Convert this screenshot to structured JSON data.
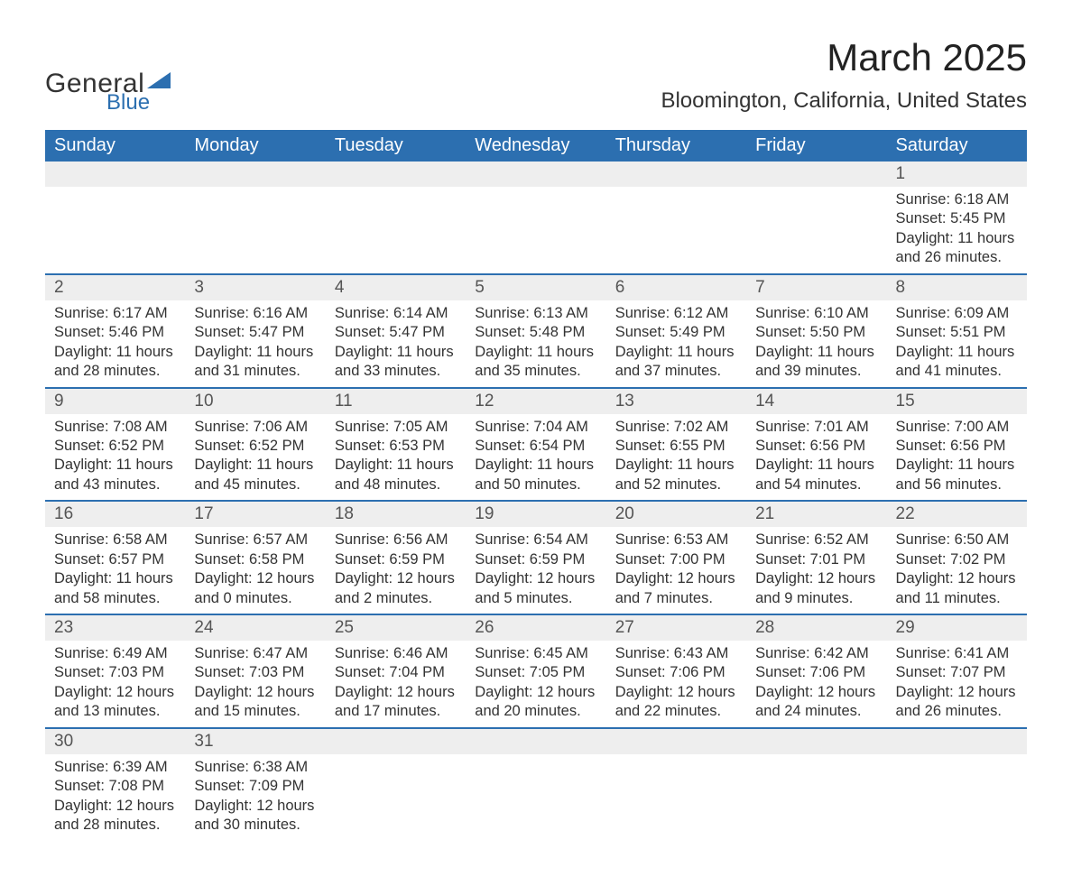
{
  "colors": {
    "header_bg": "#2c6fb0",
    "header_text": "#ffffff",
    "daynum_bg": "#eeeeee",
    "row_divider": "#2c6fb0",
    "body_text": "#333333",
    "logo_blue": "#2c6fb0"
  },
  "typography": {
    "month_title_fontsize": 42,
    "location_fontsize": 24,
    "weekday_fontsize": 20,
    "daynum_fontsize": 19,
    "body_fontsize": 16.5,
    "font_family": "Arial"
  },
  "logo": {
    "line1": "General",
    "line2": "Blue"
  },
  "title": "March 2025",
  "location": "Bloomington, California, United States",
  "weekdays": [
    "Sunday",
    "Monday",
    "Tuesday",
    "Wednesday",
    "Thursday",
    "Friday",
    "Saturday"
  ],
  "weeks": [
    [
      {
        "blank": true
      },
      {
        "blank": true
      },
      {
        "blank": true
      },
      {
        "blank": true
      },
      {
        "blank": true
      },
      {
        "blank": true
      },
      {
        "day": "1",
        "sunrise": "Sunrise: 6:18 AM",
        "sunset": "Sunset: 5:45 PM",
        "daylight": "Daylight: 11 hours and 26 minutes."
      }
    ],
    [
      {
        "day": "2",
        "sunrise": "Sunrise: 6:17 AM",
        "sunset": "Sunset: 5:46 PM",
        "daylight": "Daylight: 11 hours and 28 minutes."
      },
      {
        "day": "3",
        "sunrise": "Sunrise: 6:16 AM",
        "sunset": "Sunset: 5:47 PM",
        "daylight": "Daylight: 11 hours and 31 minutes."
      },
      {
        "day": "4",
        "sunrise": "Sunrise: 6:14 AM",
        "sunset": "Sunset: 5:47 PM",
        "daylight": "Daylight: 11 hours and 33 minutes."
      },
      {
        "day": "5",
        "sunrise": "Sunrise: 6:13 AM",
        "sunset": "Sunset: 5:48 PM",
        "daylight": "Daylight: 11 hours and 35 minutes."
      },
      {
        "day": "6",
        "sunrise": "Sunrise: 6:12 AM",
        "sunset": "Sunset: 5:49 PM",
        "daylight": "Daylight: 11 hours and 37 minutes."
      },
      {
        "day": "7",
        "sunrise": "Sunrise: 6:10 AM",
        "sunset": "Sunset: 5:50 PM",
        "daylight": "Daylight: 11 hours and 39 minutes."
      },
      {
        "day": "8",
        "sunrise": "Sunrise: 6:09 AM",
        "sunset": "Sunset: 5:51 PM",
        "daylight": "Daylight: 11 hours and 41 minutes."
      }
    ],
    [
      {
        "day": "9",
        "sunrise": "Sunrise: 7:08 AM",
        "sunset": "Sunset: 6:52 PM",
        "daylight": "Daylight: 11 hours and 43 minutes."
      },
      {
        "day": "10",
        "sunrise": "Sunrise: 7:06 AM",
        "sunset": "Sunset: 6:52 PM",
        "daylight": "Daylight: 11 hours and 45 minutes."
      },
      {
        "day": "11",
        "sunrise": "Sunrise: 7:05 AM",
        "sunset": "Sunset: 6:53 PM",
        "daylight": "Daylight: 11 hours and 48 minutes."
      },
      {
        "day": "12",
        "sunrise": "Sunrise: 7:04 AM",
        "sunset": "Sunset: 6:54 PM",
        "daylight": "Daylight: 11 hours and 50 minutes."
      },
      {
        "day": "13",
        "sunrise": "Sunrise: 7:02 AM",
        "sunset": "Sunset: 6:55 PM",
        "daylight": "Daylight: 11 hours and 52 minutes."
      },
      {
        "day": "14",
        "sunrise": "Sunrise: 7:01 AM",
        "sunset": "Sunset: 6:56 PM",
        "daylight": "Daylight: 11 hours and 54 minutes."
      },
      {
        "day": "15",
        "sunrise": "Sunrise: 7:00 AM",
        "sunset": "Sunset: 6:56 PM",
        "daylight": "Daylight: 11 hours and 56 minutes."
      }
    ],
    [
      {
        "day": "16",
        "sunrise": "Sunrise: 6:58 AM",
        "sunset": "Sunset: 6:57 PM",
        "daylight": "Daylight: 11 hours and 58 minutes."
      },
      {
        "day": "17",
        "sunrise": "Sunrise: 6:57 AM",
        "sunset": "Sunset: 6:58 PM",
        "daylight": "Daylight: 12 hours and 0 minutes."
      },
      {
        "day": "18",
        "sunrise": "Sunrise: 6:56 AM",
        "sunset": "Sunset: 6:59 PM",
        "daylight": "Daylight: 12 hours and 2 minutes."
      },
      {
        "day": "19",
        "sunrise": "Sunrise: 6:54 AM",
        "sunset": "Sunset: 6:59 PM",
        "daylight": "Daylight: 12 hours and 5 minutes."
      },
      {
        "day": "20",
        "sunrise": "Sunrise: 6:53 AM",
        "sunset": "Sunset: 7:00 PM",
        "daylight": "Daylight: 12 hours and 7 minutes."
      },
      {
        "day": "21",
        "sunrise": "Sunrise: 6:52 AM",
        "sunset": "Sunset: 7:01 PM",
        "daylight": "Daylight: 12 hours and 9 minutes."
      },
      {
        "day": "22",
        "sunrise": "Sunrise: 6:50 AM",
        "sunset": "Sunset: 7:02 PM",
        "daylight": "Daylight: 12 hours and 11 minutes."
      }
    ],
    [
      {
        "day": "23",
        "sunrise": "Sunrise: 6:49 AM",
        "sunset": "Sunset: 7:03 PM",
        "daylight": "Daylight: 12 hours and 13 minutes."
      },
      {
        "day": "24",
        "sunrise": "Sunrise: 6:47 AM",
        "sunset": "Sunset: 7:03 PM",
        "daylight": "Daylight: 12 hours and 15 minutes."
      },
      {
        "day": "25",
        "sunrise": "Sunrise: 6:46 AM",
        "sunset": "Sunset: 7:04 PM",
        "daylight": "Daylight: 12 hours and 17 minutes."
      },
      {
        "day": "26",
        "sunrise": "Sunrise: 6:45 AM",
        "sunset": "Sunset: 7:05 PM",
        "daylight": "Daylight: 12 hours and 20 minutes."
      },
      {
        "day": "27",
        "sunrise": "Sunrise: 6:43 AM",
        "sunset": "Sunset: 7:06 PM",
        "daylight": "Daylight: 12 hours and 22 minutes."
      },
      {
        "day": "28",
        "sunrise": "Sunrise: 6:42 AM",
        "sunset": "Sunset: 7:06 PM",
        "daylight": "Daylight: 12 hours and 24 minutes."
      },
      {
        "day": "29",
        "sunrise": "Sunrise: 6:41 AM",
        "sunset": "Sunset: 7:07 PM",
        "daylight": "Daylight: 12 hours and 26 minutes."
      }
    ],
    [
      {
        "day": "30",
        "sunrise": "Sunrise: 6:39 AM",
        "sunset": "Sunset: 7:08 PM",
        "daylight": "Daylight: 12 hours and 28 minutes."
      },
      {
        "day": "31",
        "sunrise": "Sunrise: 6:38 AM",
        "sunset": "Sunset: 7:09 PM",
        "daylight": "Daylight: 12 hours and 30 minutes."
      },
      {
        "blank": true
      },
      {
        "blank": true
      },
      {
        "blank": true
      },
      {
        "blank": true
      },
      {
        "blank": true
      }
    ]
  ]
}
